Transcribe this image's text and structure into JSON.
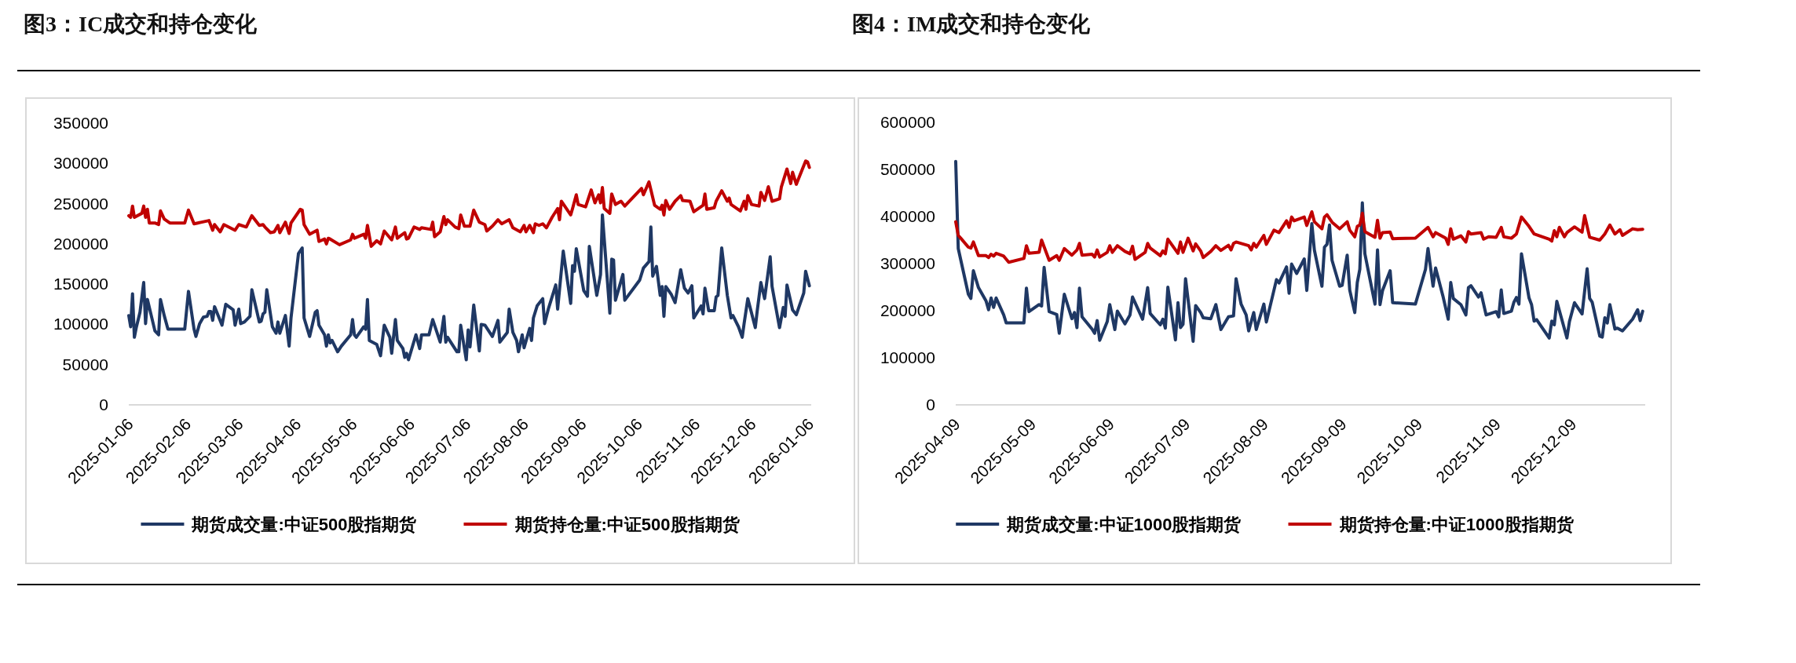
{
  "chart_data": [
    {
      "type": "line",
      "title": "图3：IC成交和持仓变化",
      "legend": "bottom",
      "xlim": [
        "2025-01-06",
        "2026-01-07"
      ],
      "xticks": [
        "2025-01-06",
        "2025-02-06",
        "2025-03-06",
        "2025-04-06",
        "2025-05-06",
        "2025-06-06",
        "2025-07-06",
        "2025-08-06",
        "2025-09-06",
        "2025-10-06",
        "2025-11-06",
        "2025-12-06",
        "2026-01-06"
      ],
      "ylim": [
        0,
        350000
      ],
      "yticks": [
        0,
        50000,
        100000,
        150000,
        200000,
        250000,
        300000,
        350000
      ],
      "series": [
        {
          "name": "期货成交量:中证500股指期货",
          "color": "#1f3864",
          "x": [
            "2025-01-06",
            "2025-01-07",
            "2025-01-08",
            "2025-01-09",
            "2025-01-10",
            "2025-01-12",
            "2025-01-14",
            "2025-01-15",
            "2025-01-16",
            "2025-01-20",
            "2025-01-22",
            "2025-01-23",
            "2025-01-25",
            "2025-01-27",
            "2025-02-05",
            "2025-02-07",
            "2025-02-10",
            "2025-02-11",
            "2025-02-13",
            "2025-02-15",
            "2025-02-17",
            "2025-02-18",
            "2025-02-19",
            "2025-02-20",
            "2025-02-21",
            "2025-02-25",
            "2025-02-27",
            "2025-03-03",
            "2025-03-04",
            "2025-03-06",
            "2025-03-07",
            "2025-03-09",
            "2025-03-12",
            "2025-03-13",
            "2025-03-17",
            "2025-03-18",
            "2025-03-19",
            "2025-03-20",
            "2025-03-21",
            "2025-03-24",
            "2025-03-26",
            "2025-03-27",
            "2025-03-28",
            "2025-03-31",
            "2025-04-02",
            "2025-04-03",
            "2025-04-07",
            "2025-04-09",
            "2025-04-10",
            "2025-04-13",
            "2025-04-16",
            "2025-04-17",
            "2025-04-18",
            "2025-04-21",
            "2025-04-22",
            "2025-04-23",
            "2025-04-24",
            "2025-04-25",
            "2025-04-28",
            "2025-04-30",
            "2025-05-05",
            "2025-05-06",
            "2025-05-07",
            "2025-05-08",
            "2025-05-12",
            "2025-05-13",
            "2025-05-14",
            "2025-05-15",
            "2025-05-19",
            "2025-05-21",
            "2025-05-23",
            "2025-05-26",
            "2025-05-27",
            "2025-05-29",
            "2025-05-30",
            "2025-06-02",
            "2025-06-03",
            "2025-06-04",
            "2025-06-05",
            "2025-06-09",
            "2025-06-11",
            "2025-06-12",
            "2025-06-16",
            "2025-06-18",
            "2025-06-22",
            "2025-06-24",
            "2025-06-25",
            "2025-06-26",
            "2025-07-01",
            "2025-07-02",
            "2025-07-03",
            "2025-07-06",
            "2025-07-07",
            "2025-07-08",
            "2025-07-10",
            "2025-07-13",
            "2025-07-14",
            "2025-07-16",
            "2025-07-20",
            "2025-07-23",
            "2025-07-24",
            "2025-07-28",
            "2025-07-29",
            "2025-07-31",
            "2025-08-02",
            "2025-08-03",
            "2025-08-05",
            "2025-08-06",
            "2025-08-09",
            "2025-08-10",
            "2025-08-11",
            "2025-08-13",
            "2025-08-16",
            "2025-08-17",
            "2025-08-19",
            "2025-08-23",
            "2025-08-24",
            "2025-08-27",
            "2025-08-31",
            "2025-09-01",
            "2025-09-02",
            "2025-09-03",
            "2025-09-07",
            "2025-09-09",
            "2025-09-10",
            "2025-09-14",
            "2025-09-16",
            "2025-09-17",
            "2025-09-21",
            "2025-09-22",
            "2025-09-23",
            "2025-09-24",
            "2025-09-28",
            "2025-09-29",
            "2025-10-07",
            "2025-10-09",
            "2025-10-12",
            "2025-10-13",
            "2025-10-14",
            "2025-10-16",
            "2025-10-18",
            "2025-10-19",
            "2025-10-20",
            "2025-10-21",
            "2025-10-24",
            "2025-10-26",
            "2025-10-29",
            "2025-10-31",
            "2025-11-02",
            "2025-11-04",
            "2025-11-05",
            "2025-11-09",
            "2025-11-10",
            "2025-11-11",
            "2025-11-13",
            "2025-11-16",
            "2025-11-17",
            "2025-11-18",
            "2025-11-20",
            "2025-11-23",
            "2025-11-25",
            "2025-11-26",
            "2025-11-29",
            "2025-12-01",
            "2025-12-02",
            "2025-12-04",
            "2025-12-08",
            "2025-12-09",
            "2025-12-11",
            "2025-12-13",
            "2025-12-16",
            "2025-12-17",
            "2025-12-21",
            "2025-12-23",
            "2025-12-24",
            "2025-12-25",
            "2025-12-28",
            "2025-12-30",
            "2026-01-03",
            "2026-01-04",
            "2026-01-06"
          ],
          "values": [
            111000,
            97000,
            138000,
            84000,
            96000,
            115000,
            152000,
            101000,
            131000,
            92000,
            87000,
            131000,
            111000,
            94000,
            94000,
            141000,
            94000,
            85000,
            101000,
            109000,
            110000,
            116000,
            116000,
            105000,
            122000,
            99000,
            125000,
            118000,
            99000,
            119000,
            101000,
            103000,
            110000,
            143000,
            103000,
            104000,
            113000,
            115000,
            143000,
            97000,
            89000,
            103000,
            89000,
            111000,
            73000,
            108000,
            188000,
            195000,
            108000,
            85000,
            115000,
            117000,
            99000,
            87000,
            73000,
            87000,
            77000,
            80000,
            66000,
            73000,
            87000,
            106000,
            87000,
            84000,
            97000,
            94000,
            131000,
            80000,
            75000,
            61000,
            99000,
            84000,
            64000,
            106000,
            80000,
            70000,
            59000,
            64000,
            56000,
            87000,
            70000,
            87000,
            87000,
            106000,
            78000,
            110000,
            78000,
            84000,
            66000,
            66000,
            99000,
            56000,
            93000,
            72000,
            124000,
            67000,
            100000,
            99000,
            85000,
            105000,
            78000,
            90000,
            119000,
            90000,
            80000,
            66000,
            87000,
            71000,
            95000,
            80000,
            108000,
            123000,
            132000,
            101000,
            119000,
            149000,
            119000,
            191000,
            126000,
            173000,
            166000,
            194000,
            142000,
            135000,
            197000,
            136000,
            162000,
            236000,
            114000,
            181000,
            180000,
            130000,
            162000,
            130000,
            155000,
            170000,
            178000,
            221000,
            160000,
            172000,
            136000,
            147000,
            110000,
            147000,
            137000,
            127000,
            168000,
            145000,
            139000,
            148000,
            108000,
            123000,
            113000,
            145000,
            117000,
            117000,
            134000,
            136000,
            195000,
            136000,
            108000,
            111000,
            97000,
            84000,
            101000,
            132000,
            96000,
            116000,
            152000,
            132000,
            184000,
            147000,
            96000,
            121000,
            110000,
            149000,
            118000,
            112000,
            139000,
            166000,
            148000
          ]
        },
        {
          "name": "期货持仓量:中证500股指期货",
          "color": "#c00000",
          "x": [
            "2025-01-06",
            "2025-01-07",
            "2025-01-08",
            "2025-01-09",
            "2025-01-13",
            "2025-01-14",
            "2025-01-15",
            "2025-01-16",
            "2025-01-17",
            "2025-01-20",
            "2025-01-22",
            "2025-01-23",
            "2025-01-25",
            "2025-01-28",
            "2025-02-05",
            "2025-02-07",
            "2025-02-10",
            "2025-02-12",
            "2025-02-18",
            "2025-02-20",
            "2025-02-21",
            "2025-02-24",
            "2025-02-26",
            "2025-03-04",
            "2025-03-06",
            "2025-03-10",
            "2025-03-13",
            "2025-03-17",
            "2025-03-19",
            "2025-03-20",
            "2025-03-23",
            "2025-03-25",
            "2025-03-27",
            "2025-03-28",
            "2025-03-31",
            "2025-04-02",
            "2025-04-03",
            "2025-04-08",
            "2025-04-09",
            "2025-04-10",
            "2025-04-13",
            "2025-04-17",
            "2025-04-18",
            "2025-04-21",
            "2025-04-22",
            "2025-04-23",
            "2025-04-24",
            "2025-04-29",
            "2025-05-05",
            "2025-05-06",
            "2025-05-07",
            "2025-05-12",
            "2025-05-13",
            "2025-05-14",
            "2025-05-16",
            "2025-05-19",
            "2025-05-21",
            "2025-05-23",
            "2025-05-27",
            "2025-05-29",
            "2025-05-30",
            "2025-06-03",
            "2025-06-04",
            "2025-06-05",
            "2025-06-08",
            "2025-06-11",
            "2025-06-12",
            "2025-06-17",
            "2025-06-18",
            "2025-06-19",
            "2025-06-22",
            "2025-06-24",
            "2025-06-25",
            "2025-06-26",
            "2025-06-30",
            "2025-07-02",
            "2025-07-03",
            "2025-07-05",
            "2025-07-08",
            "2025-07-10",
            "2025-07-13",
            "2025-07-16",
            "2025-07-17",
            "2025-07-20",
            "2025-07-23",
            "2025-07-25",
            "2025-07-29",
            "2025-07-31",
            "2025-08-04",
            "2025-08-06",
            "2025-08-07",
            "2025-08-09",
            "2025-08-11",
            "2025-08-12",
            "2025-08-14",
            "2025-08-16",
            "2025-08-18",
            "2025-08-21",
            "2025-08-24",
            "2025-08-25",
            "2025-08-26",
            "2025-08-31",
            "2025-09-01",
            "2025-09-03",
            "2025-09-04",
            "2025-09-08",
            "2025-09-11",
            "2025-09-13",
            "2025-09-15",
            "2025-09-16",
            "2025-09-17",
            "2025-09-18",
            "2025-09-21",
            "2025-09-22",
            "2025-09-24",
            "2025-09-27",
            "2025-09-29",
            "2025-10-08",
            "2025-10-09",
            "2025-10-12",
            "2025-10-15",
            "2025-10-18",
            "2025-10-19",
            "2025-10-20",
            "2025-10-21",
            "2025-10-23",
            "2025-10-26",
            "2025-10-29",
            "2025-10-30",
            "2025-11-03",
            "2025-11-05",
            "2025-11-10",
            "2025-11-11",
            "2025-11-12",
            "2025-11-16",
            "2025-11-17",
            "2025-11-20",
            "2025-11-23",
            "2025-11-24",
            "2025-11-25",
            "2025-11-30",
            "2025-12-02",
            "2025-12-03",
            "2025-12-04",
            "2025-12-06",
            "2025-12-10",
            "2025-12-11",
            "2025-12-13",
            "2025-12-15",
            "2025-12-17",
            "2025-12-21",
            "2025-12-22",
            "2025-12-25",
            "2025-12-27",
            "2025-12-28",
            "2025-12-30",
            "2026-01-04",
            "2026-01-05",
            "2026-01-06"
          ],
          "values": [
            235000,
            233000,
            247000,
            233000,
            238000,
            247000,
            233000,
            243000,
            226000,
            226000,
            224000,
            241000,
            231000,
            226000,
            226000,
            242000,
            225000,
            226000,
            229000,
            217000,
            224000,
            215000,
            224000,
            217000,
            224000,
            221000,
            235000,
            223000,
            224000,
            221000,
            214000,
            215000,
            223000,
            214000,
            227000,
            213000,
            226000,
            243000,
            242000,
            224000,
            212000,
            217000,
            203000,
            206000,
            200000,
            207000,
            206000,
            199000,
            205000,
            212000,
            207000,
            212000,
            207000,
            223000,
            197000,
            204000,
            200000,
            216000,
            205000,
            221000,
            207000,
            214000,
            206000,
            207000,
            221000,
            218000,
            220000,
            218000,
            227000,
            209000,
            215000,
            234000,
            224000,
            230000,
            221000,
            219000,
            236000,
            222000,
            222000,
            242000,
            227000,
            224000,
            216000,
            222000,
            230000,
            225000,
            230000,
            220000,
            215000,
            223000,
            215000,
            223000,
            214000,
            225000,
            223000,
            225000,
            220000,
            233000,
            244000,
            230000,
            253000,
            236000,
            244000,
            261000,
            249000,
            246000,
            267000,
            251000,
            261000,
            251000,
            270000,
            244000,
            238000,
            262000,
            249000,
            253000,
            247000,
            269000,
            261000,
            277000,
            248000,
            243000,
            248000,
            236000,
            254000,
            243000,
            253000,
            260000,
            254000,
            253000,
            240000,
            248000,
            262000,
            243000,
            245000,
            253000,
            266000,
            253000,
            257000,
            249000,
            241000,
            253000,
            243000,
            260000,
            249000,
            247000,
            264000,
            254000,
            271000,
            253000,
            256000,
            271000,
            293000,
            275000,
            289000,
            274000,
            303000,
            302000,
            295000
          ]
        }
      ]
    },
    {
      "type": "line",
      "title": "图4：IM成交和持仓变化",
      "legend": "bottom",
      "xlim": [
        "2025-04-09",
        "2026-01-07"
      ],
      "xticks": [
        "2025-04-09",
        "2025-05-09",
        "2025-06-09",
        "2025-07-09",
        "2025-08-09",
        "2025-09-09",
        "2025-10-09",
        "2025-11-09",
        "2025-12-09"
      ],
      "ylim": [
        0,
        600000
      ],
      "yticks": [
        0,
        100000,
        200000,
        300000,
        400000,
        500000,
        600000
      ],
      "series": [
        {
          "name": "期货成交量:中证1000股指期货",
          "color": "#1f3864",
          "x": [
            "2025-04-09",
            "2025-04-10",
            "2025-04-14",
            "2025-04-15",
            "2025-04-16",
            "2025-04-18",
            "2025-04-21",
            "2025-04-22",
            "2025-04-23",
            "2025-04-24",
            "2025-04-25",
            "2025-04-28",
            "2025-04-29",
            "2025-05-06",
            "2025-05-07",
            "2025-05-08",
            "2025-05-12",
            "2025-05-13",
            "2025-05-14",
            "2025-05-16",
            "2025-05-19",
            "2025-05-20",
            "2025-05-22",
            "2025-05-25",
            "2025-05-26",
            "2025-05-27",
            "2025-05-28",
            "2025-05-29",
            "2025-06-02",
            "2025-06-03",
            "2025-06-04",
            "2025-06-05",
            "2025-06-08",
            "2025-06-09",
            "2025-06-11",
            "2025-06-12",
            "2025-06-15",
            "2025-06-17",
            "2025-06-18",
            "2025-06-22",
            "2025-06-24",
            "2025-06-25",
            "2025-06-29",
            "2025-06-30",
            "2025-07-01",
            "2025-07-02",
            "2025-07-05",
            "2025-07-06",
            "2025-07-07",
            "2025-07-08",
            "2025-07-09",
            "2025-07-12",
            "2025-07-13",
            "2025-07-15",
            "2025-07-16",
            "2025-07-19",
            "2025-07-21",
            "2025-07-23",
            "2025-07-26",
            "2025-07-28",
            "2025-07-29",
            "2025-07-31",
            "2025-08-02",
            "2025-08-03",
            "2025-08-05",
            "2025-08-06",
            "2025-08-09",
            "2025-08-10",
            "2025-08-14",
            "2025-08-15",
            "2025-08-18",
            "2025-08-19",
            "2025-08-20",
            "2025-08-22",
            "2025-08-25",
            "2025-08-26",
            "2025-08-28",
            "2025-08-29",
            "2025-09-01",
            "2025-09-02",
            "2025-09-03",
            "2025-09-04",
            "2025-09-05",
            "2025-09-08",
            "2025-09-09",
            "2025-09-11",
            "2025-09-12",
            "2025-09-14",
            "2025-09-15",
            "2025-09-16",
            "2025-09-17",
            "2025-09-18",
            "2025-09-22",
            "2025-09-23",
            "2025-09-24",
            "2025-09-25",
            "2025-09-28",
            "2025-09-29",
            "2025-10-08",
            "2025-10-12",
            "2025-10-13",
            "2025-10-15",
            "2025-10-16",
            "2025-10-19",
            "2025-10-21",
            "2025-10-22",
            "2025-10-23",
            "2025-10-26",
            "2025-10-28",
            "2025-10-29",
            "2025-10-30",
            "2025-11-02",
            "2025-11-03",
            "2025-11-05",
            "2025-11-09",
            "2025-11-10",
            "2025-11-11",
            "2025-11-12",
            "2025-11-15",
            "2025-11-16",
            "2025-11-17",
            "2025-11-18",
            "2025-11-19",
            "2025-11-22",
            "2025-11-23",
            "2025-11-24",
            "2025-11-25",
            "2025-11-30",
            "2025-12-01",
            "2025-12-02",
            "2025-12-03",
            "2025-12-07",
            "2025-12-08",
            "2025-12-10",
            "2025-12-13",
            "2025-12-15",
            "2025-12-16",
            "2025-12-17",
            "2025-12-20",
            "2025-12-21",
            "2025-12-22",
            "2025-12-23",
            "2025-12-24",
            "2025-12-26",
            "2025-12-27",
            "2025-12-29",
            "2026-01-02",
            "2026-01-04",
            "2026-01-05",
            "2026-01-06"
          ],
          "values": [
            517000,
            332000,
            235000,
            226000,
            285000,
            249000,
            221000,
            202000,
            227000,
            207000,
            227000,
            191000,
            174000,
            174000,
            248000,
            198000,
            213000,
            210000,
            292000,
            198000,
            192000,
            152000,
            235000,
            183000,
            196000,
            164000,
            248000,
            187000,
            161000,
            152000,
            179000,
            137000,
            177000,
            213000,
            160000,
            199000,
            172000,
            191000,
            229000,
            182000,
            249000,
            194000,
            170000,
            182000,
            163000,
            250000,
            138000,
            217000,
            164000,
            171000,
            268000,
            135000,
            211000,
            196000,
            185000,
            183000,
            213000,
            160000,
            187000,
            189000,
            268000,
            214000,
            191000,
            157000,
            196000,
            160000,
            214000,
            176000,
            266000,
            259000,
            293000,
            237000,
            299000,
            279000,
            310000,
            243000,
            385000,
            329000,
            252000,
            335000,
            341000,
            382000,
            307000,
            252000,
            254000,
            318000,
            244000,
            196000,
            260000,
            288000,
            429000,
            321000,
            214000,
            329000,
            213000,
            243000,
            285000,
            217000,
            214000,
            288000,
            332000,
            252000,
            291000,
            229000,
            182000,
            260000,
            226000,
            213000,
            191000,
            249000,
            253000,
            229000,
            238000,
            191000,
            198000,
            187000,
            244000,
            194000,
            199000,
            218000,
            228000,
            214000,
            321000,
            227000,
            213000,
            178000,
            181000,
            142000,
            178000,
            170000,
            220000,
            142000,
            177000,
            217000,
            193000,
            289000,
            226000,
            218000,
            146000,
            144000,
            185000,
            174000,
            213000,
            161000,
            163000,
            157000,
            182000,
            202000,
            179000,
            199000
          ]
        },
        {
          "name": "期货持仓量:中证1000股指期货",
          "color": "#c00000",
          "x": [
            "2025-04-09",
            "2025-04-10",
            "2025-04-11",
            "2025-04-14",
            "2025-04-15",
            "2025-04-16",
            "2025-04-18",
            "2025-04-21",
            "2025-04-22",
            "2025-04-23",
            "2025-04-24",
            "2025-04-25",
            "2025-04-28",
            "2025-04-30",
            "2025-05-06",
            "2025-05-07",
            "2025-05-08",
            "2025-05-12",
            "2025-05-13",
            "2025-05-16",
            "2025-05-19",
            "2025-05-20",
            "2025-05-22",
            "2025-05-25",
            "2025-05-27",
            "2025-05-28",
            "2025-05-29",
            "2025-06-02",
            "2025-06-03",
            "2025-06-04",
            "2025-06-05",
            "2025-06-08",
            "2025-06-09",
            "2025-06-10",
            "2025-06-12",
            "2025-06-15",
            "2025-06-17",
            "2025-06-18",
            "2025-06-19",
            "2025-06-23",
            "2025-06-24",
            "2025-06-25",
            "2025-06-29",
            "2025-06-30",
            "2025-07-01",
            "2025-07-02",
            "2025-07-06",
            "2025-07-07",
            "2025-07-08",
            "2025-07-10",
            "2025-07-12",
            "2025-07-13",
            "2025-07-15",
            "2025-07-16",
            "2025-07-19",
            "2025-07-21",
            "2025-07-23",
            "2025-07-26",
            "2025-07-27",
            "2025-07-28",
            "2025-07-29",
            "2025-08-03",
            "2025-08-04",
            "2025-08-05",
            "2025-08-06",
            "2025-08-09",
            "2025-08-10",
            "2025-08-13",
            "2025-08-15",
            "2025-08-18",
            "2025-08-19",
            "2025-08-20",
            "2025-08-21",
            "2025-08-25",
            "2025-08-26",
            "2025-08-28",
            "2025-08-29",
            "2025-09-01",
            "2025-09-02",
            "2025-09-03",
            "2025-09-05",
            "2025-09-08",
            "2025-09-11",
            "2025-09-12",
            "2025-09-14",
            "2025-09-15",
            "2025-09-16",
            "2025-09-17",
            "2025-09-18",
            "2025-09-22",
            "2025-09-23",
            "2025-09-24",
            "2025-09-25",
            "2025-09-28",
            "2025-09-29",
            "2025-10-08",
            "2025-10-13",
            "2025-10-15",
            "2025-10-16",
            "2025-10-20",
            "2025-10-21",
            "2025-10-22",
            "2025-10-23",
            "2025-10-26",
            "2025-10-28",
            "2025-10-29",
            "2025-10-30",
            "2025-11-03",
            "2025-11-04",
            "2025-11-06",
            "2025-11-09",
            "2025-11-11",
            "2025-11-12",
            "2025-11-15",
            "2025-11-17",
            "2025-11-19",
            "2025-11-22",
            "2025-11-24",
            "2025-11-30",
            "2025-12-01",
            "2025-12-02",
            "2025-12-03",
            "2025-12-04",
            "2025-12-06",
            "2025-12-07",
            "2025-12-10",
            "2025-12-13",
            "2025-12-14",
            "2025-12-16",
            "2025-12-20",
            "2025-12-22",
            "2025-12-24",
            "2025-12-26",
            "2025-12-28",
            "2025-12-29",
            "2026-01-02",
            "2026-01-04",
            "2026-01-06"
          ],
          "values": [
            389000,
            360000,
            354000,
            335000,
            333000,
            346000,
            317000,
            317000,
            313000,
            320000,
            316000,
            322000,
            316000,
            303000,
            311000,
            338000,
            322000,
            324000,
            350000,
            307000,
            317000,
            307000,
            332000,
            318000,
            329000,
            343000,
            318000,
            320000,
            314000,
            329000,
            314000,
            324000,
            338000,
            324000,
            338000,
            326000,
            321000,
            337000,
            309000,
            324000,
            343000,
            333000,
            317000,
            327000,
            321000,
            352000,
            322000,
            346000,
            324000,
            354000,
            327000,
            342000,
            327000,
            313000,
            326000,
            338000,
            328000,
            339000,
            329000,
            343000,
            346000,
            338000,
            329000,
            343000,
            335000,
            360000,
            341000,
            371000,
            366000,
            391000,
            377000,
            399000,
            391000,
            399000,
            381000,
            410000,
            389000,
            374000,
            399000,
            404000,
            388000,
            374000,
            389000,
            371000,
            357000,
            379000,
            382000,
            407000,
            368000,
            356000,
            392000,
            354000,
            366000,
            367000,
            353000,
            354000,
            377000,
            357000,
            366000,
            354000,
            341000,
            374000,
            352000,
            359000,
            346000,
            368000,
            363000,
            366000,
            352000,
            357000,
            356000,
            377000,
            357000,
            354000,
            363000,
            399000,
            379000,
            363000,
            352000,
            348000,
            370000,
            357000,
            377000,
            357000,
            366000,
            378000,
            367000,
            402000,
            356000,
            350000,
            363000,
            382000,
            363000,
            372000,
            360000,
            374000,
            372000,
            373000
          ]
        }
      ]
    }
  ]
}
